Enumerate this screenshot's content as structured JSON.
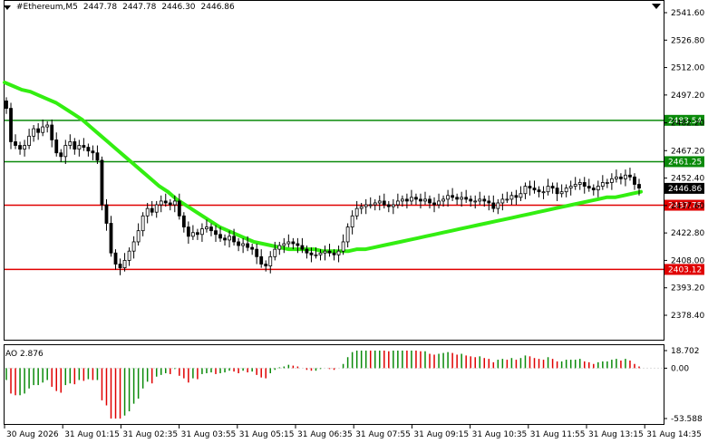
{
  "symbol_info": {
    "symbol": "#Ethereum,M5",
    "open": "2447.78",
    "high": "2447.78",
    "low": "2446.30",
    "close": "2446.86"
  },
  "price_axis": {
    "ticks": [
      "2541.60",
      "2526.80",
      "2512.00",
      "2497.20",
      "2482.20",
      "2467.20",
      "2452.40",
      "2437.60",
      "2422.80",
      "2408.00",
      "2393.20",
      "2378.40"
    ],
    "current_price": "2446.86"
  },
  "levels": [
    {
      "label": "2483.54",
      "value": 2483.54,
      "color": "#0a8a0a"
    },
    {
      "label": "2461.25",
      "value": 2461.25,
      "color": "#0a8a0a"
    },
    {
      "label": "2437.75",
      "value": 2437.75,
      "color": "#e00000"
    },
    {
      "label": "2403.12",
      "value": 2403.12,
      "color": "#e00000"
    }
  ],
  "time_axis": [
    "30 Aug 2026",
    "31 Aug 01:15",
    "31 Aug 02:35",
    "31 Aug 03:55",
    "31 Aug 05:15",
    "31 Aug 06:35",
    "31 Aug 07:55",
    "31 Aug 09:15",
    "31 Aug 10:35",
    "31 Aug 11:55",
    "31 Aug 13:15",
    "31 Aug 14:35"
  ],
  "indicator": {
    "name": "AO",
    "value": "2.876",
    "axis_ticks": [
      "18.702",
      "0.00",
      "-53.588"
    ]
  },
  "colors": {
    "background": "#ffffff",
    "candle": "#000000",
    "moving_average": "#33ee11",
    "support_resistance_green": "#0a8a0a",
    "support_resistance_red": "#e00000",
    "ao_up": "#0a8a0a",
    "ao_down": "#e00000"
  },
  "chart_data": {
    "type": "candlestick",
    "symbol": "#Ethereum",
    "timeframe": "M5",
    "ylim": [
      2378.4,
      2541.6
    ],
    "close_series": [
      2490,
      2472,
      2470,
      2468,
      2470,
      2475,
      2479,
      2477,
      2480,
      2481,
      2473,
      2466,
      2464,
      2470,
      2472,
      2468,
      2470,
      2469,
      2467,
      2466,
      2462,
      2438,
      2428,
      2412,
      2406,
      2404,
      2408,
      2413,
      2418,
      2424,
      2432,
      2436,
      2434,
      2438,
      2440,
      2439,
      2438,
      2440,
      2432,
      2426,
      2421,
      2423,
      2422,
      2425,
      2426,
      2424,
      2422,
      2420,
      2419,
      2421,
      2418,
      2416,
      2417,
      2415,
      2414,
      2410,
      2406,
      2405,
      2410,
      2414,
      2416,
      2417,
      2418,
      2417,
      2416,
      2414,
      2412,
      2411,
      2411,
      2412,
      2413,
      2412,
      2411,
      2413,
      2418,
      2426,
      2432,
      2436,
      2437,
      2438,
      2438,
      2439,
      2440,
      2438,
      2437,
      2438,
      2440,
      2441,
      2440,
      2442,
      2441,
      2440,
      2441,
      2439,
      2438,
      2440,
      2441,
      2443,
      2442,
      2441,
      2442,
      2441,
      2440,
      2440,
      2441,
      2440,
      2439,
      2436,
      2439,
      2441,
      2441,
      2443,
      2442,
      2444,
      2448,
      2447,
      2446,
      2445,
      2445,
      2448,
      2447,
      2444,
      2445,
      2447,
      2448,
      2449,
      2450,
      2448,
      2447,
      2446,
      2448,
      2450,
      2450,
      2452,
      2453,
      2452,
      2454,
      2453,
      2449,
      2447
    ],
    "moving_average": [
      2504,
      2502,
      2500,
      2499,
      2497,
      2495,
      2493,
      2490,
      2487,
      2484,
      2480,
      2476,
      2472,
      2468,
      2464,
      2460,
      2456,
      2452,
      2448,
      2445,
      2441,
      2438,
      2435,
      2432,
      2429,
      2426,
      2424,
      2422,
      2420,
      2418,
      2417,
      2416,
      2415,
      2414,
      2414,
      2414,
      2414,
      2413,
      2413,
      2413,
      2413,
      2414,
      2414,
      2415,
      2416,
      2417,
      2418,
      2419,
      2420,
      2421,
      2422,
      2423,
      2424,
      2425,
      2426,
      2427,
      2428,
      2429,
      2430,
      2431,
      2432,
      2433,
      2434,
      2435,
      2436,
      2437,
      2438,
      2439,
      2440,
      2441,
      2442,
      2442,
      2443,
      2444,
      2445
    ]
  }
}
